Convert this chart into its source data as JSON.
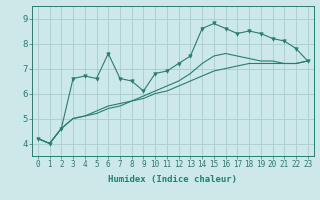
{
  "xlabel": "Humidex (Indice chaleur)",
  "bg_color": "#cce8e8",
  "grid_color": "#aacccc",
  "line_color": "#2a7d6e",
  "xlim": [
    -0.5,
    23.5
  ],
  "ylim": [
    3.5,
    9.5
  ],
  "xticks": [
    0,
    1,
    2,
    3,
    4,
    5,
    6,
    7,
    8,
    9,
    10,
    11,
    12,
    13,
    14,
    15,
    16,
    17,
    18,
    19,
    20,
    21,
    22,
    23
  ],
  "yticks": [
    4,
    5,
    6,
    7,
    8,
    9
  ],
  "line1_x": [
    0,
    1,
    2,
    3,
    4,
    5,
    6,
    7,
    8,
    9,
    10,
    11,
    12,
    13,
    14,
    15,
    16,
    17,
    18,
    19,
    20,
    21,
    22,
    23
  ],
  "line1_y": [
    4.2,
    4.0,
    4.6,
    6.6,
    6.7,
    6.6,
    7.6,
    6.6,
    6.5,
    6.1,
    6.8,
    6.9,
    7.2,
    7.5,
    8.6,
    8.8,
    8.6,
    8.4,
    8.5,
    8.4,
    8.2,
    8.1,
    7.8,
    7.3
  ],
  "line2_x": [
    0,
    1,
    2,
    3,
    4,
    5,
    6,
    7,
    8,
    9,
    10,
    11,
    12,
    13,
    14,
    15,
    16,
    17,
    18,
    19,
    20,
    21,
    22,
    23
  ],
  "line2_y": [
    4.2,
    4.0,
    4.6,
    5.0,
    5.1,
    5.2,
    5.4,
    5.5,
    5.7,
    5.8,
    6.0,
    6.1,
    6.3,
    6.5,
    6.7,
    6.9,
    7.0,
    7.1,
    7.2,
    7.2,
    7.2,
    7.2,
    7.2,
    7.3
  ],
  "line3_x": [
    0,
    1,
    2,
    3,
    4,
    5,
    6,
    7,
    8,
    9,
    10,
    11,
    12,
    13,
    14,
    15,
    16,
    17,
    18,
    19,
    20,
    21,
    22,
    23
  ],
  "line3_y": [
    4.2,
    4.0,
    4.6,
    5.0,
    5.1,
    5.3,
    5.5,
    5.6,
    5.7,
    5.9,
    6.1,
    6.3,
    6.5,
    6.8,
    7.2,
    7.5,
    7.6,
    7.5,
    7.4,
    7.3,
    7.3,
    7.2,
    7.2,
    7.3
  ],
  "xlabel_fontsize": 6.5,
  "tick_fontsize": 5.5
}
